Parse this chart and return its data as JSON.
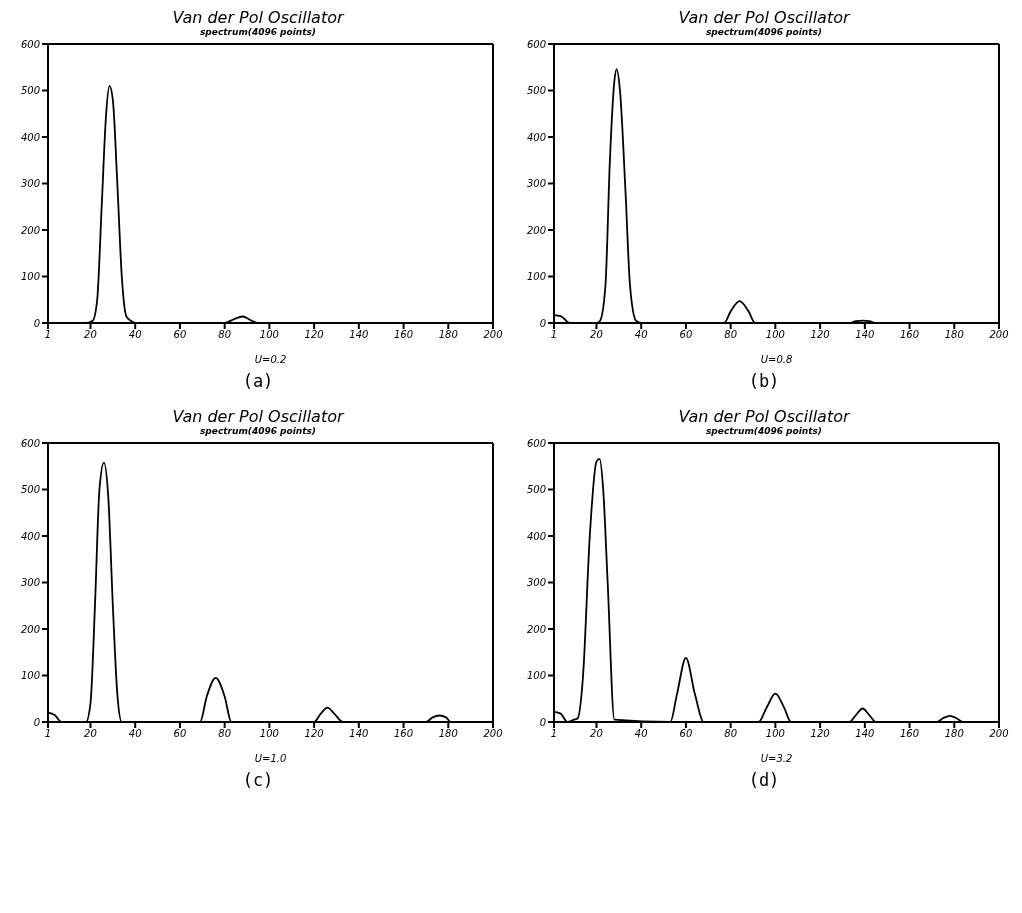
{
  "chart_data": [
    {
      "type": "line",
      "title": "Van der Pol Oscillator",
      "subtitle": "spectrum(4096 points)",
      "xlabel": "U=0.2",
      "annotations": [
        "(a)"
      ],
      "xlim": [
        1,
        200
      ],
      "xticks": [
        1,
        20,
        40,
        60,
        80,
        100,
        120,
        140,
        160,
        180,
        200
      ],
      "ylim": [
        0,
        600
      ],
      "yticks": [
        0,
        100,
        200,
        300,
        400,
        500,
        600
      ],
      "series": [
        {
          "color": "#000000",
          "x": [
            1,
            18,
            21,
            23,
            25,
            27,
            28.5,
            30,
            32,
            34,
            36,
            38,
            40,
            80,
            84,
            88,
            92,
            95,
            200
          ],
          "values": [
            0,
            0,
            5,
            50,
            250,
            450,
            510,
            480,
            300,
            100,
            15,
            5,
            0,
            0,
            8,
            14,
            5,
            0,
            0
          ]
        }
      ]
    },
    {
      "type": "line",
      "title": "Van der Pol Oscillator",
      "subtitle": "spectrum(4096 points)",
      "xlabel": "U=0.8",
      "annotations": [
        "(b)"
      ],
      "xlim": [
        1,
        200
      ],
      "xticks": [
        1,
        20,
        40,
        60,
        80,
        100,
        120,
        140,
        160,
        180,
        200
      ],
      "ylim": [
        0,
        600
      ],
      "yticks": [
        0,
        100,
        200,
        300,
        400,
        500,
        600
      ],
      "series": [
        {
          "color": "#000000",
          "x": [
            1,
            4,
            8,
            20,
            21.6,
            24,
            26,
            28,
            29,
            30.5,
            33,
            35,
            37.7,
            40,
            77,
            80,
            84,
            88,
            91,
            133,
            136,
            139,
            142,
            145,
            200
          ],
          "values": [
            17,
            15,
            0,
            0,
            5,
            80,
            350,
            520,
            546,
            500,
            280,
            80,
            5,
            0,
            0,
            25,
            47,
            25,
            0,
            0,
            4,
            5,
            4,
            0,
            0
          ]
        }
      ]
    },
    {
      "type": "line",
      "title": "Van der Pol Oscillator",
      "subtitle": "spectrum(4096 points)",
      "xlabel": "U=1.0",
      "annotations": [
        "(c)"
      ],
      "xlim": [
        1,
        200
      ],
      "xticks": [
        1,
        20,
        40,
        60,
        80,
        100,
        120,
        140,
        160,
        180,
        200
      ],
      "ylim": [
        0,
        600
      ],
      "yticks": [
        0,
        100,
        200,
        300,
        400,
        500,
        600
      ],
      "series": [
        {
          "color": "#000000",
          "x": [
            1,
            4,
            7,
            18,
            20,
            22,
            24,
            26,
            28,
            30,
            32,
            34,
            69,
            72,
            76,
            80,
            83,
            120,
            123,
            126,
            129,
            133,
            170,
            173,
            176,
            179,
            181,
            200
          ],
          "values": [
            20,
            15,
            0,
            0,
            40,
            250,
            500,
            558,
            480,
            250,
            60,
            0,
            0,
            55,
            95,
            55,
            0,
            0,
            18,
            31,
            18,
            0,
            0,
            10,
            14,
            10,
            0,
            0
          ]
        }
      ]
    },
    {
      "type": "line",
      "title": "Van der Pol Oscillator",
      "subtitle": "spectrum(4096 points)",
      "xlabel": "U=3.2",
      "annotations": [
        "(d)"
      ],
      "xlim": [
        1,
        200
      ],
      "xticks": [
        1,
        20,
        40,
        60,
        80,
        100,
        120,
        140,
        160,
        180,
        200
      ],
      "ylim": [
        0,
        600
      ],
      "yticks": [
        0,
        100,
        200,
        300,
        400,
        500,
        600
      ],
      "series": [
        {
          "color": "#000000",
          "x": [
            1,
            4,
            7,
            10,
            11.6,
            14,
            17,
            20,
            21.4,
            23,
            25,
            28,
            53,
            56,
            60,
            64,
            68,
            92.5,
            96,
            100,
            104,
            107,
            133,
            136,
            139,
            142,
            145,
            172,
            175,
            178,
            181,
            184,
            200
          ],
          "values": [
            22,
            18,
            0,
            5,
            8,
            100,
            400,
            560,
            566,
            500,
            300,
            5,
            0,
            60,
            138,
            60,
            0,
            0,
            30,
            61,
            30,
            0,
            0,
            15,
            29,
            15,
            0,
            0,
            8,
            13,
            8,
            0,
            0
          ]
        }
      ]
    }
  ]
}
